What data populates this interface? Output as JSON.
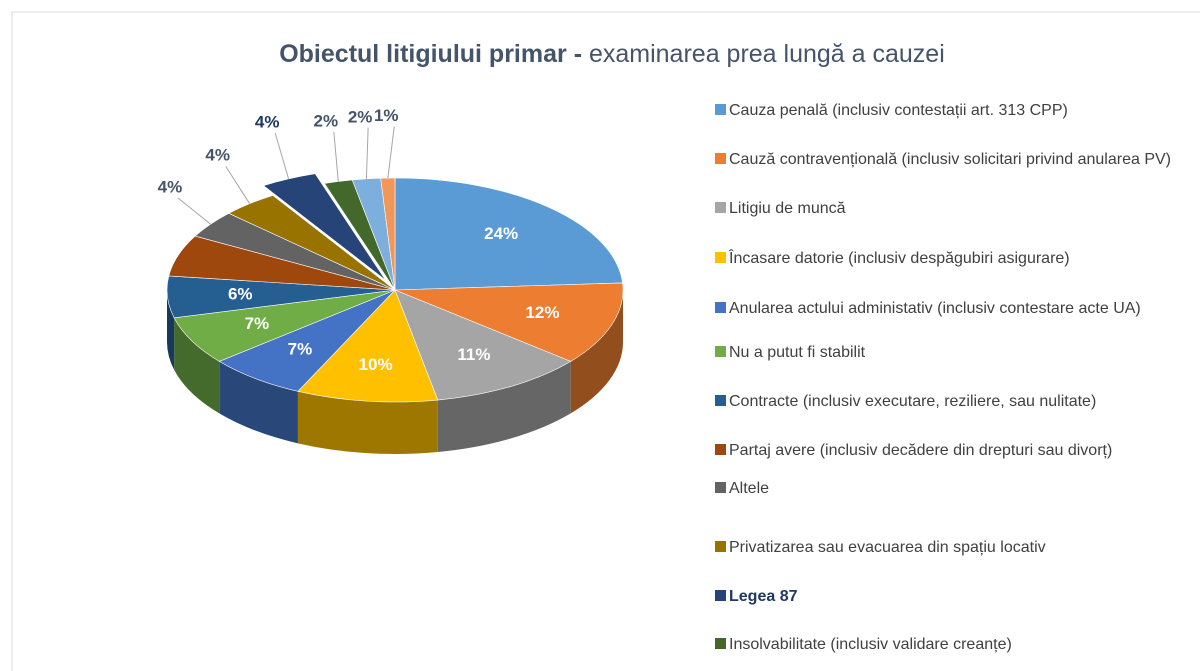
{
  "chart_data": {
    "type": "pie",
    "title": {
      "bold": "Obiectul litigiului primar -",
      "rest": "examinarea prea lungă a cauzei"
    },
    "categories": [
      "Cauza penală (inclusiv contestații art. 313 CPP)",
      "Cauză contravențională (inclusiv solicitari privind anularea PV)",
      "Litigiu de muncă",
      "Încasare datorie (inclusiv despăgubiri asigurare)",
      "Anularea actului administativ (inclusiv contestare acte UA)",
      "Nu a putut fi stabilit",
      "Contracte (inclusiv executare, reziliere, sau nulitate)",
      "Partaj avere (inclusiv decădere din drepturi sau divorț)",
      "Altele",
      "Privatizarea sau evacuarea din spațiu locativ",
      "Legea 87",
      "Insolvabilitate (inclusiv validare creanțe)",
      null,
      null
    ],
    "values": [
      24,
      12,
      11,
      10,
      7,
      7,
      6,
      6,
      4,
      4,
      4,
      2,
      2,
      1
    ],
    "value_labels": [
      "24%",
      "12%",
      "11%",
      "10%",
      "7%",
      "7%",
      "6%",
      null,
      "4%",
      "4%",
      "4%",
      "2%",
      "2%",
      "1%"
    ],
    "colors": [
      "#5b9bd5",
      "#ed7d31",
      "#a5a5a5",
      "#ffc000",
      "#4472c4",
      "#70ad47",
      "#255e91",
      "#9e480e",
      "#636363",
      "#997300",
      "#264478",
      "#43682b",
      "#7cafdd",
      "#f1975a"
    ],
    "exploded": [
      10
    ]
  }
}
